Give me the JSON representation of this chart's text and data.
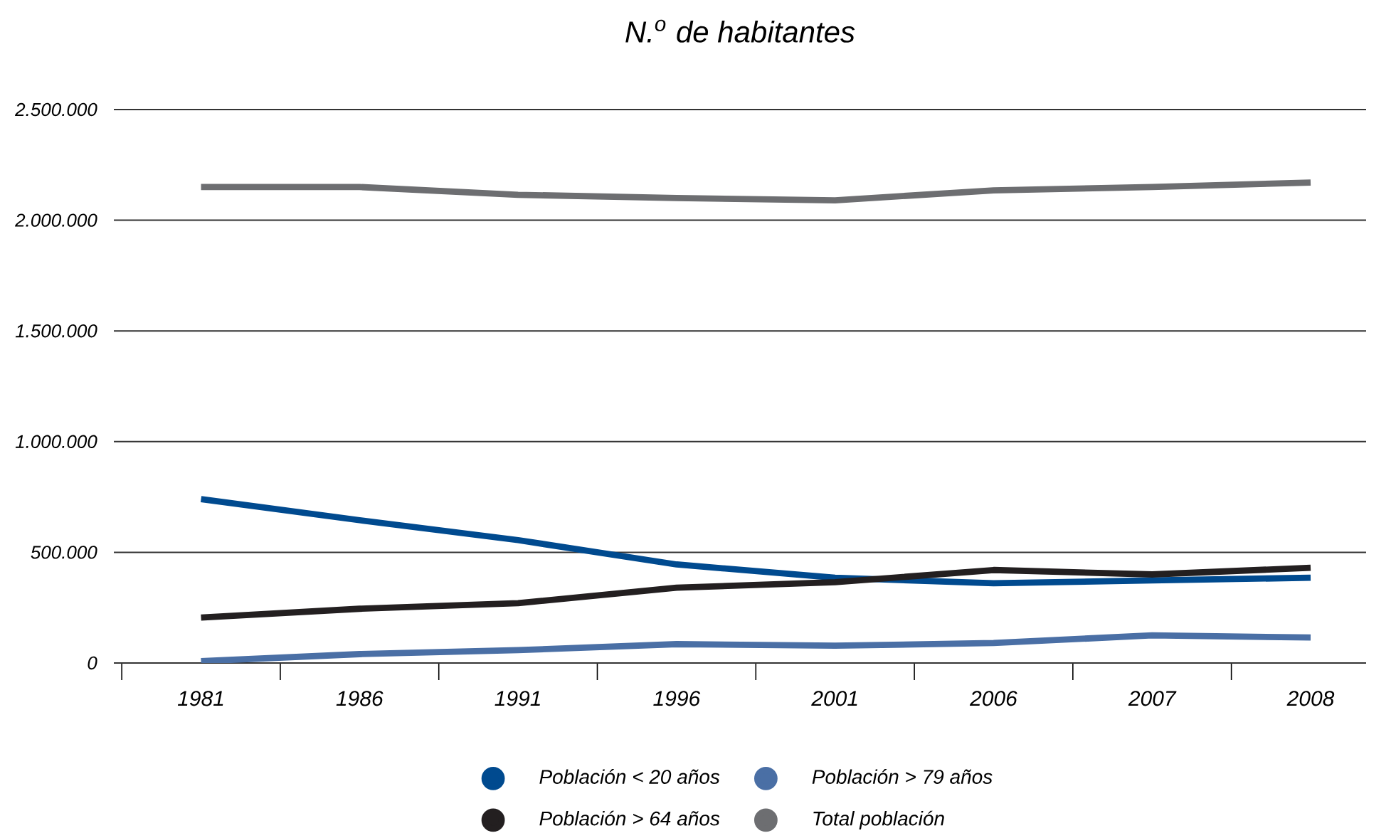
{
  "chart_data": {
    "type": "line",
    "title": "N.$^{o}$ de habitantes",
    "categories": [
      "1981",
      "1986",
      "1991",
      "1996",
      "2001",
      "2006",
      "2007",
      "2008"
    ],
    "series": [
      {
        "name": "Población < 20 años",
        "color": "#004a8f",
        "values": [
          740000,
          645000,
          555000,
          445000,
          385000,
          360000,
          373000,
          385000
        ]
      },
      {
        "name": "Población > 79 años",
        "color": "#4a6fa5",
        "values": [
          8000,
          40000,
          58000,
          85000,
          78000,
          90000,
          125000,
          115000
        ]
      },
      {
        "name": "Población > 64 años",
        "color": "#231f20",
        "values": [
          205000,
          245000,
          270000,
          340000,
          365000,
          420000,
          400000,
          430000
        ]
      },
      {
        "name": "Total población",
        "color": "#6d6e71",
        "values": [
          2150000,
          2150000,
          2115000,
          2100000,
          2090000,
          2135000,
          2150000,
          2170000
        ]
      }
    ],
    "ylim": [
      0,
      2500000
    ],
    "yticks": [
      {
        "value": 0,
        "label": "0"
      },
      {
        "value": 500000,
        "label": "500.000"
      },
      {
        "value": 1000000,
        "label": "1.000.000"
      },
      {
        "value": 1500000,
        "label": "1.500.000"
      },
      {
        "value": 2000000,
        "label": "2.000.000"
      },
      {
        "value": 2500000,
        "label": "2.500.000"
      }
    ],
    "grid": "y",
    "legend": "bottom"
  }
}
